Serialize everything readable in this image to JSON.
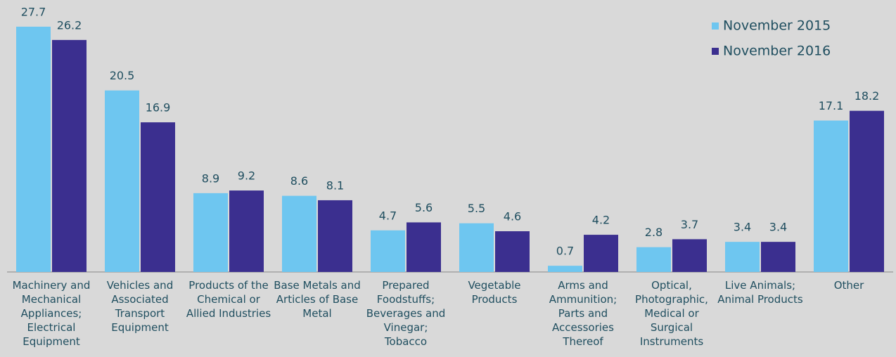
{
  "chart_data": {
    "type": "bar",
    "categories": [
      "Machinery and Mechanical Appliances; Electrical Equipment",
      "Vehicles and Associated Transport Equipment",
      "Products of the Chemical or Allied Industries",
      "Base Metals and Articles of Base Metal",
      "Prepared Foodstuffs; Beverages and Vinegar; Tobacco",
      "Vegetable Products",
      "Arms and Ammunition; Parts and Accessories Thereof",
      "Optical, Photographic, Medical or Surgical Instruments",
      "Live Animals; Animal Products",
      "Other"
    ],
    "series": [
      {
        "name": "November 2015",
        "color": "#6ec6f0",
        "values": [
          27.7,
          20.5,
          8.9,
          8.6,
          4.7,
          5.5,
          0.7,
          2.8,
          3.4,
          17.1
        ]
      },
      {
        "name": "November 2016",
        "color": "#3b2f8f",
        "values": [
          26.2,
          16.9,
          9.2,
          8.1,
          5.6,
          4.6,
          4.2,
          3.7,
          3.4,
          18.2
        ]
      }
    ],
    "legend": "top-right"
  }
}
